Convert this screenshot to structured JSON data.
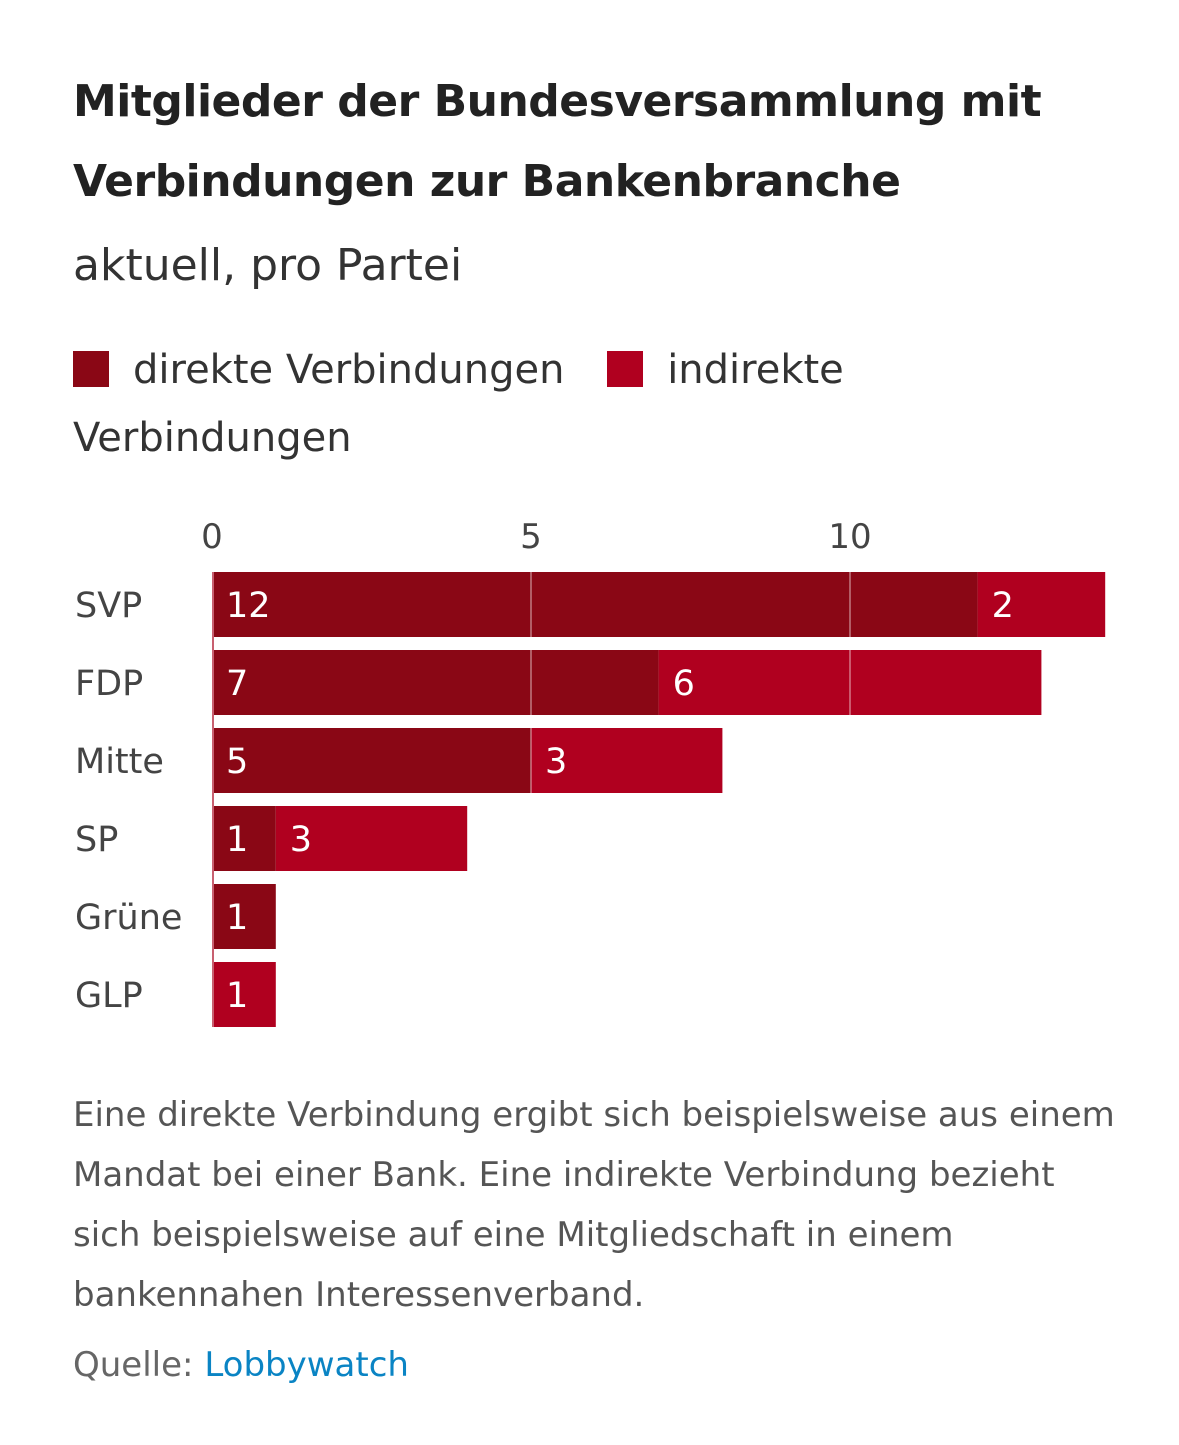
{
  "title": "Mitglieder der Bundesversammlung mit Verbindungen zur Bankenbranche",
  "subtitle": "aktuell, pro Partei",
  "note": "Eine direkte Verbindung ergibt sich beispielsweise aus einem Mandat bei einer Bank. Eine indirekte Verbindung bezieht sich beispielsweise auf eine Mitgliedschaft in einem bankennahen Interessenverband.",
  "source": {
    "label": "Quelle:",
    "link_text": "Lobbywatch"
  },
  "chart_data": {
    "type": "bar",
    "orientation": "horizontal",
    "stacked": true,
    "title": "Mitglieder der Bundesversammlung mit Verbindungen zur Bankenbranche",
    "subtitle": "aktuell, pro Partei",
    "categories": [
      "SVP",
      "FDP",
      "Mitte",
      "SP",
      "Grüne",
      "GLP"
    ],
    "series": [
      {
        "name": "direkte Verbindungen",
        "color": "#8a0715",
        "values": [
          12,
          7,
          5,
          1,
          1,
          0
        ]
      },
      {
        "name": "indirekte Verbindungen",
        "color": "#b0001f",
        "values": [
          2,
          6,
          3,
          3,
          0,
          1
        ]
      }
    ],
    "xticks": [
      0,
      5,
      10
    ],
    "xlim": [
      0,
      14
    ],
    "grid": true,
    "legend": "top"
  }
}
